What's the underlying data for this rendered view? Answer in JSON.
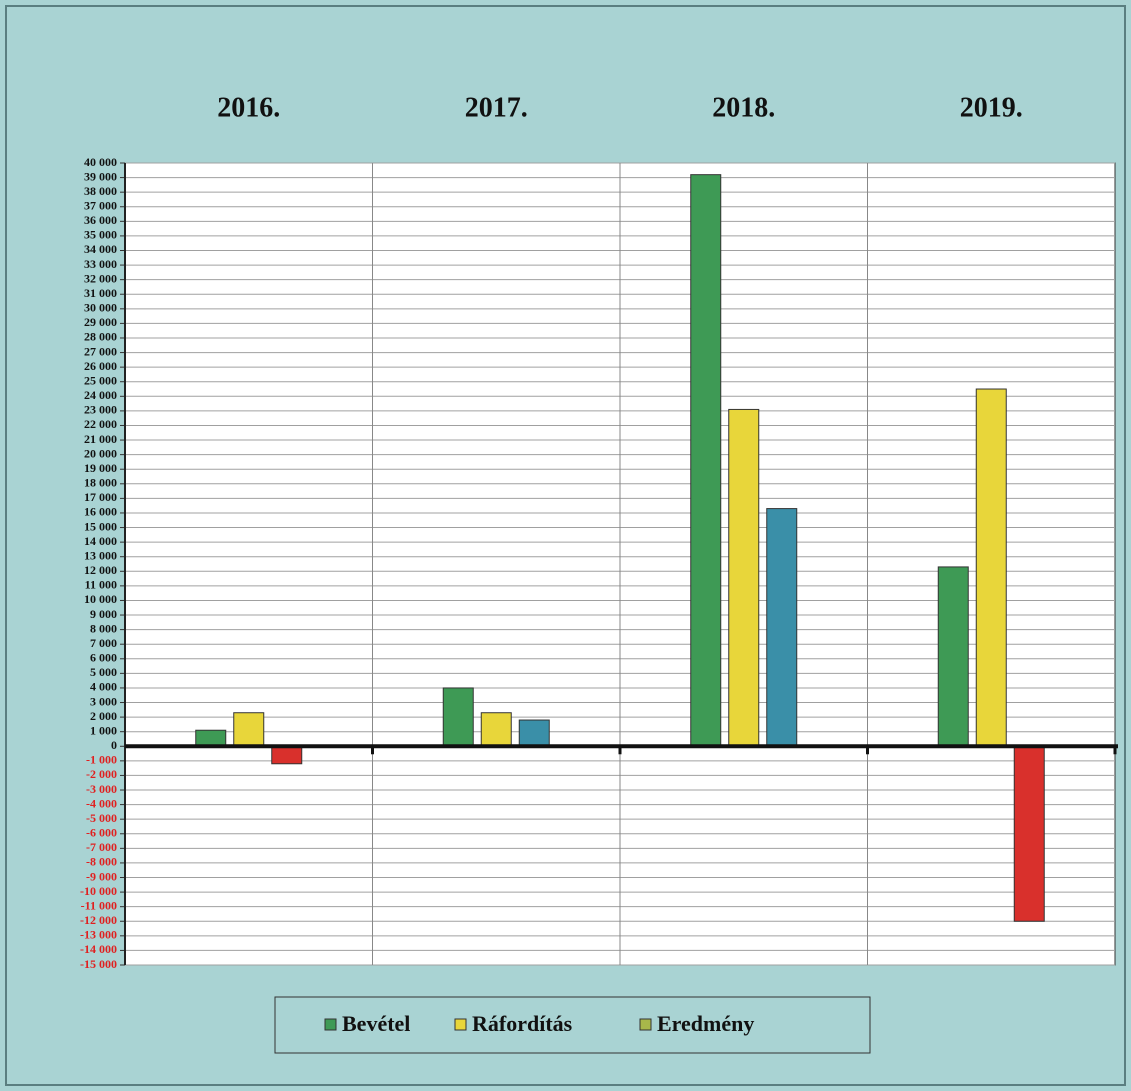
{
  "chart_data": {
    "type": "bar",
    "categories": [
      "2016.",
      "2017.",
      "2018.",
      "2019."
    ],
    "series": [
      {
        "name": "Bevétel",
        "color": "#3e9a55",
        "values": [
          1100,
          4000,
          39200,
          12300
        ]
      },
      {
        "name": "Ráfordítás",
        "color": "#e8d63a",
        "values": [
          2300,
          2300,
          23100,
          24500
        ]
      },
      {
        "name": "Eredmény",
        "color": "#a8b84a",
        "values": [
          -1200,
          1800,
          16300,
          -12000
        ],
        "colors": [
          "#d9302c",
          "#3a8fa8",
          "#3a8fa8",
          "#d9302c"
        ]
      }
    ],
    "ylim": [
      -15000,
      40000
    ],
    "yticks": [
      {
        "value": 40000,
        "label": "40 000"
      },
      {
        "value": 39000,
        "label": "39 000"
      },
      {
        "value": 38000,
        "label": "38 000"
      },
      {
        "value": 37000,
        "label": "37 000"
      },
      {
        "value": 36000,
        "label": "36 000"
      },
      {
        "value": 35000,
        "label": "35 000"
      },
      {
        "value": 34000,
        "label": "34 000"
      },
      {
        "value": 33000,
        "label": "33 000"
      },
      {
        "value": 32000,
        "label": "32 000"
      },
      {
        "value": 31000,
        "label": "31 000"
      },
      {
        "value": 30000,
        "label": "30 000"
      },
      {
        "value": 29000,
        "label": "29 000"
      },
      {
        "value": 28000,
        "label": "28 000"
      },
      {
        "value": 27000,
        "label": "27 000"
      },
      {
        "value": 26000,
        "label": "26 000"
      },
      {
        "value": 25000,
        "label": "25 000"
      },
      {
        "value": 24000,
        "label": "24 000"
      },
      {
        "value": 23000,
        "label": "23 000"
      },
      {
        "value": 22000,
        "label": "22 000"
      },
      {
        "value": 21000,
        "label": "21 000"
      },
      {
        "value": 20000,
        "label": "20 000"
      },
      {
        "value": 19000,
        "label": "19 000"
      },
      {
        "value": 18000,
        "label": "18 000"
      },
      {
        "value": 17000,
        "label": "17 000"
      },
      {
        "value": 16000,
        "label": "16 000"
      },
      {
        "value": 15000,
        "label": "15 000"
      },
      {
        "value": 14000,
        "label": "14 000"
      },
      {
        "value": 13000,
        "label": "13 000"
      },
      {
        "value": 12000,
        "label": "12 000"
      },
      {
        "value": 11000,
        "label": "11 000"
      },
      {
        "value": 10000,
        "label": "10 000"
      },
      {
        "value": 9000,
        "label": "9 000"
      },
      {
        "value": 8000,
        "label": "8 000"
      },
      {
        "value": 7000,
        "label": "7 000"
      },
      {
        "value": 6000,
        "label": "6 000"
      },
      {
        "value": 5000,
        "label": "5 000"
      },
      {
        "value": 4000,
        "label": "4 000"
      },
      {
        "value": 3000,
        "label": "3 000"
      },
      {
        "value": 2000,
        "label": "2 000"
      },
      {
        "value": 1000,
        "label": "1 000"
      },
      0,
      {
        "value": -1000,
        "label": "-1 000"
      },
      {
        "value": -2000,
        "label": "-2 000"
      },
      {
        "value": -3000,
        "label": "-3 000"
      },
      {
        "value": -4000,
        "label": "-4 000"
      },
      {
        "value": -5000,
        "label": "-5 000"
      },
      {
        "value": -6000,
        "label": "-6 000"
      },
      {
        "value": -7000,
        "label": "-7 000"
      },
      {
        "value": -8000,
        "label": "-8 000"
      },
      {
        "value": -9000,
        "label": "-9 000"
      },
      {
        "value": -10000,
        "label": "-10 000"
      },
      {
        "value": -11000,
        "label": "-11 000"
      },
      {
        "value": -12000,
        "label": "-12 000"
      },
      {
        "value": -13000,
        "label": "-13 000"
      },
      {
        "value": -14000,
        "label": "-14 000"
      },
      {
        "value": -15000,
        "label": "-15 000"
      }
    ],
    "grid": true,
    "negative_tick_color": "#e02020",
    "legend": "bottom"
  }
}
